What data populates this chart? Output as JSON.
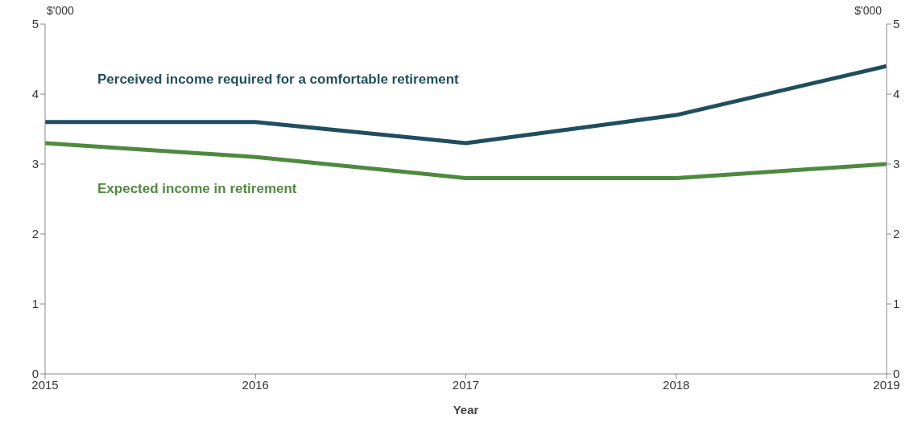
{
  "chart_data": {
    "type": "line",
    "xlabel": "Year",
    "ylabel": "$'000",
    "y2label": "$'000",
    "x": [
      2015,
      2016,
      2017,
      2018,
      2019
    ],
    "series": [
      {
        "name": "Perceived income required for a comfortable retirement",
        "color": "#1f4e5f",
        "values": [
          3.6,
          3.6,
          3.3,
          3.7,
          4.4
        ]
      },
      {
        "name": "Expected income in retirement",
        "color": "#4e8a3e",
        "values": [
          3.3,
          3.1,
          2.8,
          2.8,
          3.0
        ]
      }
    ],
    "xlim": [
      2015,
      2019
    ],
    "xticks": [
      2015,
      2016,
      2017,
      2018,
      2019
    ],
    "ylim": [
      0,
      5
    ],
    "yticks": [
      0,
      1,
      2,
      3,
      4,
      5
    ],
    "y2lim": [
      0,
      5
    ],
    "y2ticks": [
      0,
      1,
      2,
      3,
      4,
      5
    ],
    "grid": false,
    "legend": false,
    "marker": "none",
    "line_style": "solid"
  }
}
